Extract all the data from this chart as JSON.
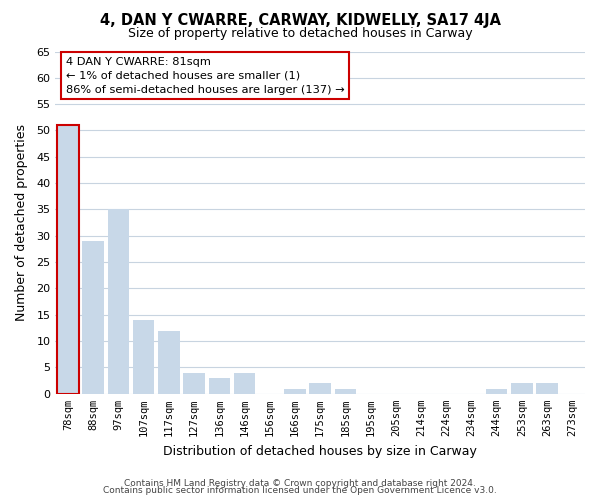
{
  "title": "4, DAN Y CWARRE, CARWAY, KIDWELLY, SA17 4JA",
  "subtitle": "Size of property relative to detached houses in Carway",
  "xlabel": "Distribution of detached houses by size in Carway",
  "ylabel": "Number of detached properties",
  "bar_color": "#c8d8e8",
  "highlight_color": "#cc0000",
  "background_color": "#ffffff",
  "grid_color": "#c8d4e0",
  "categories": [
    "78sqm",
    "88sqm",
    "97sqm",
    "107sqm",
    "117sqm",
    "127sqm",
    "136sqm",
    "146sqm",
    "156sqm",
    "166sqm",
    "175sqm",
    "185sqm",
    "195sqm",
    "205sqm",
    "214sqm",
    "224sqm",
    "234sqm",
    "244sqm",
    "253sqm",
    "263sqm",
    "273sqm"
  ],
  "values": [
    51,
    29,
    35,
    14,
    12,
    4,
    3,
    4,
    0,
    1,
    2,
    1,
    0,
    0,
    0,
    0,
    0,
    1,
    2,
    2,
    0
  ],
  "highlight_index": 0,
  "annotation_line1": "4 DAN Y CWARRE: 81sqm",
  "annotation_line2": "← 1% of detached houses are smaller (1)",
  "annotation_line3": "86% of semi-detached houses are larger (137) →",
  "ylim": [
    0,
    65
  ],
  "yticks": [
    0,
    5,
    10,
    15,
    20,
    25,
    30,
    35,
    40,
    45,
    50,
    55,
    60,
    65
  ],
  "footer1": "Contains HM Land Registry data © Crown copyright and database right 2024.",
  "footer2": "Contains public sector information licensed under the Open Government Licence v3.0."
}
